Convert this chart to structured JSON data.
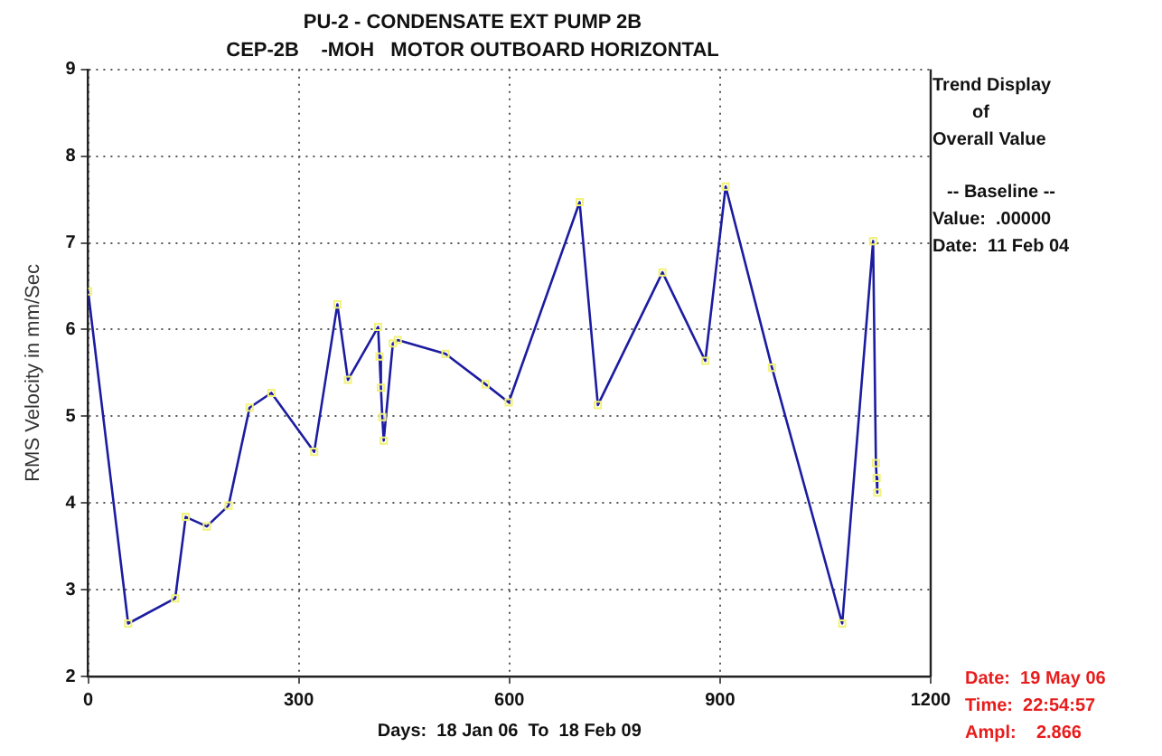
{
  "chart_data": {
    "type": "line",
    "title": "PU-2 - CONDENSATE EXT PUMP 2B",
    "subtitle": "CEP-2B    -MOH   MOTOR OUTBOARD HORIZONTAL",
    "xlabel": "Days:  18 Jan 06  To  18 Feb 09",
    "ylabel": "RMS Velocity in mm/Sec",
    "annotations": [
      "Trend Display",
      "of",
      "Overall Value",
      "-- Baseline --",
      "Value:  .00000",
      "Date:  11 Feb 04",
      "Date:  19 May 06",
      "Time:  22:54:57",
      "Ampl:    2.866"
    ],
    "series": [
      {
        "color": "#1c1ca0",
        "x": [
          0,
          57,
          124,
          139,
          169,
          200,
          230,
          261,
          322,
          355,
          370,
          413,
          415,
          417,
          419,
          421,
          434,
          441,
          509,
          566,
          599,
          700,
          726,
          818,
          879,
          908,
          974,
          1074,
          1118,
          1122,
          1123,
          1124
        ],
        "values": [
          6.44,
          2.61,
          2.9,
          3.84,
          3.73,
          3.97,
          5.1,
          5.27,
          4.59,
          6.29,
          5.42,
          6.03,
          5.69,
          5.33,
          4.99,
          4.72,
          5.84,
          5.88,
          5.72,
          5.37,
          5.16,
          7.47,
          5.13,
          6.66,
          5.64,
          7.65,
          5.56,
          2.61,
          7.02,
          4.46,
          4.29,
          4.12
        ]
      }
    ],
    "xlim": [
      0,
      1200
    ],
    "xticks": [
      0,
      300,
      600,
      900,
      1200
    ],
    "ylim": [
      2,
      9
    ],
    "yticks": [
      2,
      3,
      4,
      5,
      6,
      7,
      8,
      9
    ],
    "grid": true,
    "legend": false,
    "marker": "square",
    "line_style": "solid"
  }
}
